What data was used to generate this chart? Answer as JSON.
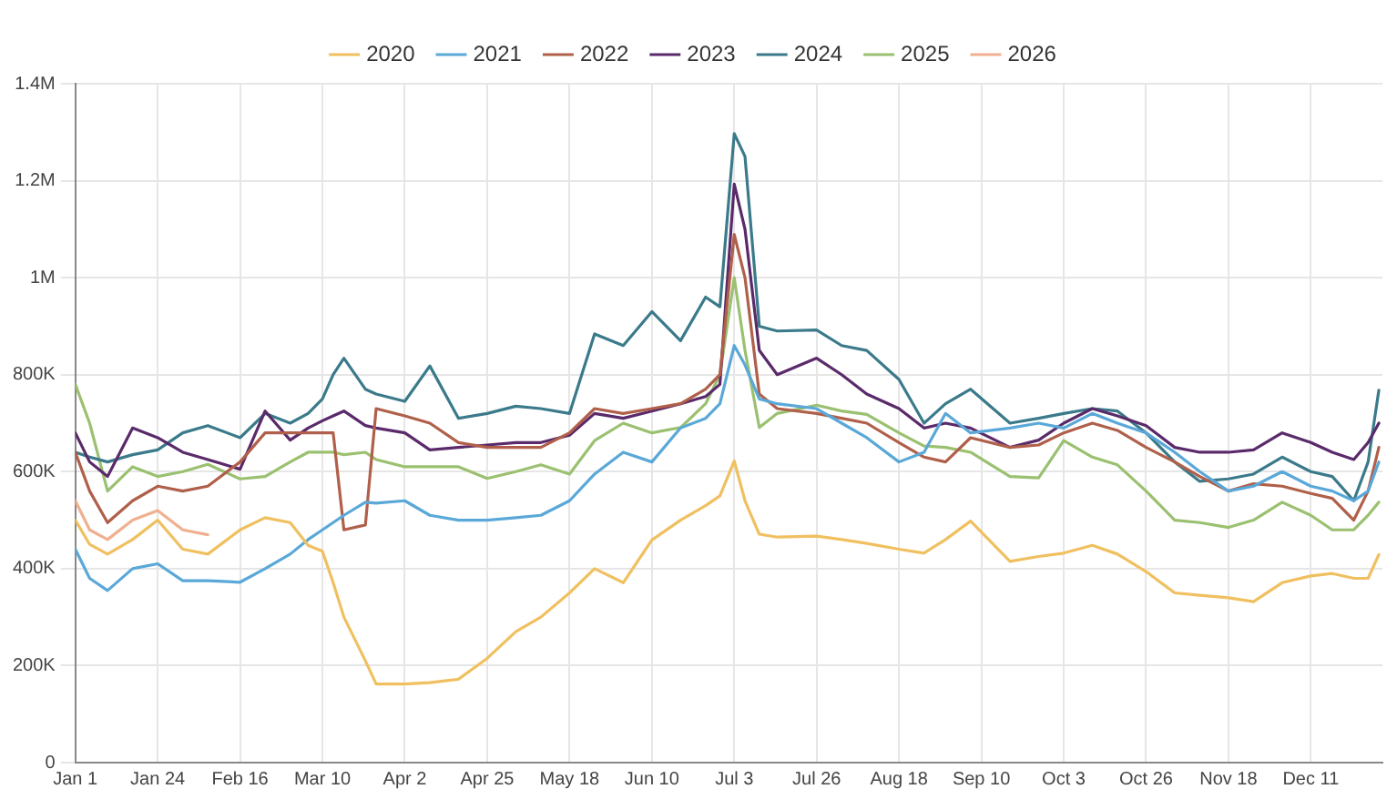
{
  "chart_data": {
    "type": "line",
    "x": [
      "--01-01",
      "--01-05",
      "--01-10",
      "--01-17",
      "--01-24",
      "--01-31",
      "--02-07",
      "--02-16",
      "--02-23",
      "--03-01",
      "--03-06",
      "--03-10",
      "--03-13",
      "--03-16",
      "--03-22",
      "--03-25",
      "--04-02",
      "--04-09",
      "--04-17",
      "--04-25",
      "--05-03",
      "--05-10",
      "--05-18",
      "--05-25",
      "--06-02",
      "--06-10",
      "--06-18",
      "--06-25",
      "--06-29",
      "--07-03",
      "--07-06",
      "--07-10",
      "--07-15",
      "--07-26",
      "--08-02",
      "--08-09",
      "--08-18",
      "--08-25",
      "--08-31",
      "--09-07",
      "--09-18",
      "--09-26",
      "--10-03",
      "--10-11",
      "--10-18",
      "--10-26",
      "--11-03",
      "--11-10",
      "--11-18",
      "--11-25",
      "--12-03",
      "--12-11",
      "--12-17",
      "--12-23",
      "--12-27",
      "--12-30"
    ],
    "series": [
      {
        "name": "2020",
        "color": "#f0c060",
        "values": [
          500000,
          450000,
          430000,
          460000,
          500000,
          440000,
          430000,
          480000,
          505000,
          495000,
          448000,
          436000,
          371000,
          300000,
          210000,
          162000,
          162000,
          165000,
          172000,
          215000,
          270000,
          300000,
          350000,
          400000,
          371000,
          459000,
          500000,
          530000,
          550000,
          622000,
          540000,
          471000,
          465000,
          467000,
          460000,
          452000,
          440000,
          432000,
          460000,
          498000,
          415000,
          425000,
          432000,
          448000,
          430000,
          394000,
          350000,
          345000,
          340000,
          332000,
          371000,
          385000,
          390000,
          380000,
          380000,
          429000
        ]
      },
      {
        "name": "2021",
        "color": "#5aa8d8",
        "values": [
          440000,
          380000,
          355000,
          400000,
          410000,
          375000,
          375000,
          372000,
          400000,
          430000,
          460000,
          480000,
          495000,
          510000,
          537000,
          535000,
          540000,
          510000,
          500000,
          500000,
          505000,
          510000,
          540000,
          595000,
          640000,
          620000,
          690000,
          710000,
          740000,
          860000,
          820000,
          750000,
          740000,
          730000,
          700000,
          670000,
          620000,
          640000,
          720000,
          680000,
          690000,
          700000,
          690000,
          720000,
          700000,
          680000,
          640000,
          600000,
          560000,
          570000,
          600000,
          570000,
          560000,
          540000,
          560000,
          620000
        ]
      },
      {
        "name": "2022",
        "color": "#b0604a",
        "values": [
          640000,
          560000,
          495000,
          540000,
          570000,
          560000,
          570000,
          620000,
          680000,
          680000,
          680000,
          680000,
          680000,
          480000,
          490000,
          730000,
          715000,
          700000,
          660000,
          650000,
          650000,
          650000,
          680000,
          730000,
          720000,
          730000,
          740000,
          770000,
          800000,
          1089000,
          1000000,
          760000,
          730000,
          720000,
          710000,
          700000,
          660000,
          630000,
          620000,
          670000,
          650000,
          655000,
          680000,
          700000,
          685000,
          650000,
          620000,
          590000,
          560000,
          575000,
          570000,
          555000,
          545000,
          500000,
          560000,
          650000
        ]
      },
      {
        "name": "2023",
        "color": "#5a2a6a",
        "values": [
          680000,
          620000,
          590000,
          690000,
          670000,
          640000,
          625000,
          605000,
          725000,
          665000,
          690000,
          705000,
          715000,
          725000,
          695000,
          690000,
          680000,
          645000,
          650000,
          655000,
          660000,
          660000,
          675000,
          720000,
          710000,
          725000,
          740000,
          755000,
          780000,
          1193000,
          1100000,
          850000,
          800000,
          834000,
          800000,
          760000,
          730000,
          690000,
          700000,
          690000,
          650000,
          665000,
          700000,
          730000,
          715000,
          695000,
          650000,
          640000,
          640000,
          645000,
          680000,
          660000,
          640000,
          625000,
          660000,
          700000
        ]
      },
      {
        "name": "2024",
        "color": "#3a7a8a",
        "values": [
          640000,
          630000,
          620000,
          635000,
          645000,
          680000,
          695000,
          670000,
          720000,
          700000,
          720000,
          750000,
          800000,
          834000,
          770000,
          760000,
          745000,
          818000,
          710000,
          720000,
          735000,
          730000,
          720000,
          884000,
          860000,
          930000,
          870000,
          960000,
          940000,
          1297000,
          1250000,
          900000,
          890000,
          892000,
          860000,
          850000,
          790000,
          700000,
          740000,
          770000,
          700000,
          710000,
          720000,
          730000,
          725000,
          680000,
          620000,
          580000,
          585000,
          595000,
          630000,
          600000,
          590000,
          540000,
          620000,
          768000
        ]
      },
      {
        "name": "2025",
        "color": "#9ac070",
        "values": [
          780000,
          700000,
          560000,
          610000,
          590000,
          600000,
          615000,
          585000,
          590000,
          620000,
          640000,
          640000,
          640000,
          635000,
          640000,
          625000,
          610000,
          610000,
          610000,
          586000,
          600000,
          614000,
          595000,
          664000,
          700000,
          680000,
          691000,
          740000,
          800000,
          1000000,
          850000,
          691000,
          720000,
          737000,
          725000,
          718000,
          680000,
          653000,
          650000,
          640000,
          590000,
          587000,
          664000,
          630000,
          614000,
          560000,
          500000,
          495000,
          485000,
          500000,
          537000,
          510000,
          480000,
          480000,
          510000,
          537000
        ]
      },
      {
        "name": "2026",
        "color": "#f0b090",
        "values": [
          540000,
          480000,
          460000,
          500000,
          520000,
          480000,
          470000,
          null,
          null,
          null,
          null,
          null,
          null,
          null,
          null,
          null,
          null,
          null,
          null,
          null,
          null,
          null,
          null,
          null,
          null,
          null,
          null,
          null,
          null,
          null,
          null,
          null,
          null,
          null,
          null,
          null,
          null,
          null,
          null,
          null,
          null,
          null,
          null,
          null,
          null,
          null,
          null,
          null,
          null,
          null,
          null,
          null,
          null,
          null,
          null,
          null
        ]
      }
    ],
    "xlim": [
      "--01-01",
      "--12-31"
    ],
    "xticks": [
      {
        "value": "--01-01",
        "label": "Jan 1"
      },
      {
        "value": "--01-24",
        "label": "Jan 24"
      },
      {
        "value": "--02-16",
        "label": "Feb 16"
      },
      {
        "value": "--03-10",
        "label": "Mar 10"
      },
      {
        "value": "--04-02",
        "label": "Apr 2"
      },
      {
        "value": "--04-25",
        "label": "Apr 25"
      },
      {
        "value": "--05-18",
        "label": "May 18"
      },
      {
        "value": "--06-10",
        "label": "Jun 10"
      },
      {
        "value": "--07-03",
        "label": "Jul 3"
      },
      {
        "value": "--07-26",
        "label": "Jul 26"
      },
      {
        "value": "--08-18",
        "label": "Aug 18"
      },
      {
        "value": "--09-10",
        "label": "Sep 10"
      },
      {
        "value": "--10-03",
        "label": "Oct 3"
      },
      {
        "value": "--10-26",
        "label": "Oct 26"
      },
      {
        "value": "--11-18",
        "label": "Nov 18"
      },
      {
        "value": "--12-11",
        "label": "Dec 11"
      }
    ],
    "ylim": [
      0,
      1400000
    ],
    "yticks": [
      0,
      {
        "value": 200000,
        "label": "200K"
      },
      {
        "value": 400000,
        "label": "400K"
      },
      {
        "value": 600000,
        "label": "600K"
      },
      {
        "value": 800000,
        "label": "800K"
      },
      {
        "value": 1000000,
        "label": "1M"
      },
      {
        "value": 1200000,
        "label": "1.2M"
      },
      {
        "value": 1400000,
        "label": "1.4M"
      }
    ],
    "grid": true,
    "legend": "top",
    "marker": "none",
    "line_style": "solid"
  }
}
